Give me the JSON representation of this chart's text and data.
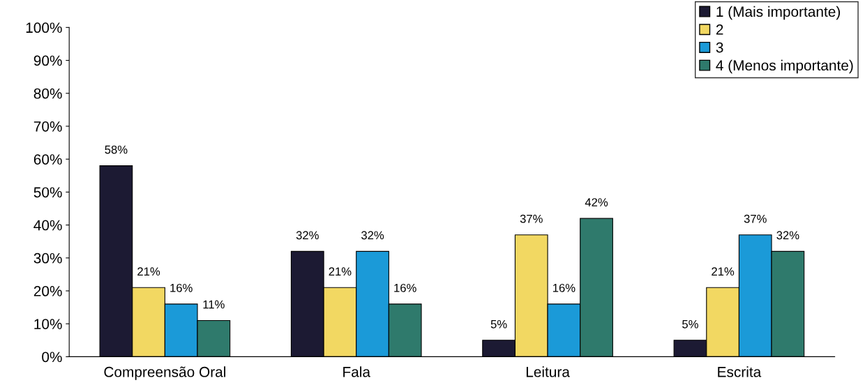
{
  "chart_data": {
    "type": "bar",
    "categories": [
      "Compreensão Oral",
      "Fala",
      "Leitura",
      "Escrita"
    ],
    "series": [
      {
        "name": "1 (Mais importante)",
        "color": "#1c1a33",
        "values": [
          58,
          32,
          5,
          5
        ],
        "value_labels": [
          "58%",
          "32%",
          "5%",
          "5%"
        ]
      },
      {
        "name": "2",
        "color": "#f2d862",
        "values": [
          21,
          21,
          37,
          21
        ],
        "value_labels": [
          "21%",
          "21%",
          "37%",
          "21%"
        ]
      },
      {
        "name": "3",
        "color": "#1b9ad8",
        "values": [
          16,
          32,
          16,
          37
        ],
        "value_labels": [
          "16%",
          "32%",
          "16%",
          "37%"
        ]
      },
      {
        "name": "4 (Menos importante)",
        "color": "#2f7a6c",
        "values": [
          11,
          16,
          42,
          32
        ],
        "value_labels": [
          "11%",
          "16%",
          "42%",
          "32%"
        ]
      }
    ],
    "ylim": [
      0,
      100
    ],
    "yticks": [
      {
        "value": 0,
        "label": "0%"
      },
      {
        "value": 10,
        "label": "10%"
      },
      {
        "value": 20,
        "label": "20%"
      },
      {
        "value": 30,
        "label": "30%"
      },
      {
        "value": 40,
        "label": "40%"
      },
      {
        "value": 50,
        "label": "50%"
      },
      {
        "value": 60,
        "label": "60%"
      },
      {
        "value": 70,
        "label": "70%"
      },
      {
        "value": 80,
        "label": "80%"
      },
      {
        "value": 90,
        "label": "90%"
      },
      {
        "value": 100,
        "label": "100%"
      }
    ],
    "grid": false,
    "legend": "top right"
  }
}
